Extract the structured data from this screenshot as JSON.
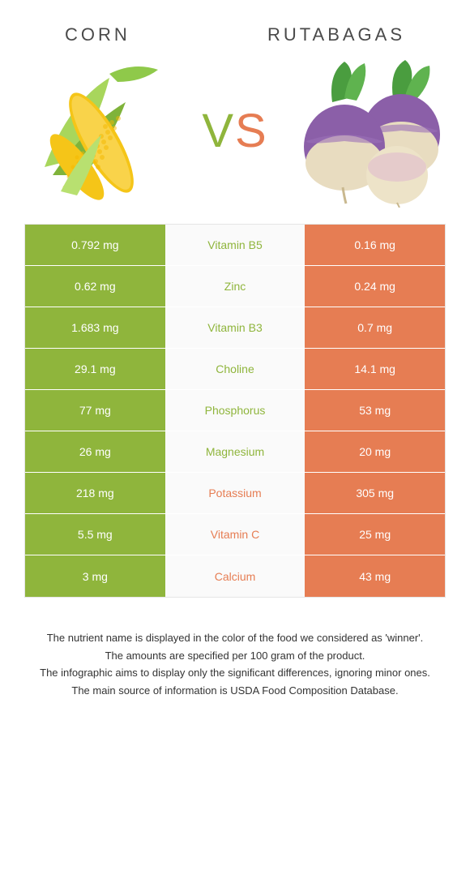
{
  "header": {
    "left_title": "CORN",
    "right_title": "RUTABAGAS",
    "vs_v": "V",
    "vs_s": "S"
  },
  "colors": {
    "left": "#8fb53c",
    "right": "#e67d53",
    "mid_bg": "#fafafa"
  },
  "rows": [
    {
      "left": "0.792 mg",
      "label": "Vitamin B5",
      "right": "0.16 mg",
      "winner": "left"
    },
    {
      "left": "0.62 mg",
      "label": "Zinc",
      "right": "0.24 mg",
      "winner": "left"
    },
    {
      "left": "1.683 mg",
      "label": "Vitamin B3",
      "right": "0.7 mg",
      "winner": "left"
    },
    {
      "left": "29.1 mg",
      "label": "Choline",
      "right": "14.1 mg",
      "winner": "left"
    },
    {
      "left": "77 mg",
      "label": "Phosphorus",
      "right": "53 mg",
      "winner": "left"
    },
    {
      "left": "26 mg",
      "label": "Magnesium",
      "right": "20 mg",
      "winner": "left"
    },
    {
      "left": "218 mg",
      "label": "Potassium",
      "right": "305 mg",
      "winner": "right"
    },
    {
      "left": "5.5 mg",
      "label": "Vitamin C",
      "right": "25 mg",
      "winner": "right"
    },
    {
      "left": "3 mg",
      "label": "Calcium",
      "right": "43 mg",
      "winner": "right"
    }
  ],
  "footnotes": [
    "The nutrient name is displayed in the color of the food we considered as 'winner'.",
    "The amounts are specified per 100 gram of the product.",
    "The infographic aims to display only the significant differences, ignoring minor ones.",
    "The main source of information is USDA Food Composition Database."
  ]
}
